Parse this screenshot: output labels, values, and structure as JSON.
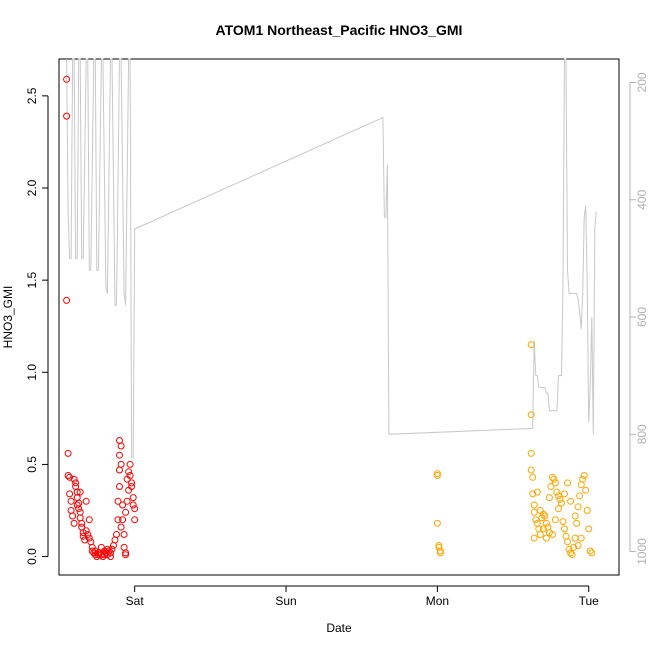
{
  "chart_data": {
    "type": "scatter",
    "title": "ATOM1 Northeast_Pacific HNO3_GMI",
    "xlabel": "Date",
    "ylabel": "HNO3_GMI",
    "x_ticks": [
      {
        "label": "Sat",
        "value": 1.0
      },
      {
        "label": "Sun",
        "value": 2.0
      },
      {
        "label": "Mon",
        "value": 3.0
      },
      {
        "label": "Tue",
        "value": 4.0
      }
    ],
    "xlim": [
      0.5,
      4.2
    ],
    "ylim": [
      -0.1,
      2.7
    ],
    "y_ticks": [
      "0.0",
      "0.5",
      "1.0",
      "1.5",
      "2.0",
      "2.5"
    ],
    "y2_ticks": [
      "200",
      "400",
      "600",
      "800",
      "1000"
    ],
    "y2lim": [
      1040,
      160
    ],
    "grid": false,
    "colors": {
      "series1": "#ff0000",
      "series2": "#ffa500",
      "pressure": "#c8c8c8",
      "axis": "#000000",
      "axis_right": "#b0b0b0"
    },
    "series": [
      {
        "color": "#ff0000",
        "points": [
          [
            0.55,
            2.59
          ],
          [
            0.55,
            2.39
          ],
          [
            0.55,
            1.39
          ],
          [
            0.56,
            0.56
          ],
          [
            0.56,
            0.44
          ],
          [
            0.57,
            0.43
          ],
          [
            0.57,
            0.34
          ],
          [
            0.58,
            0.3
          ],
          [
            0.58,
            0.25
          ],
          [
            0.59,
            0.22
          ],
          [
            0.6,
            0.18
          ],
          [
            0.6,
            0.42
          ],
          [
            0.61,
            0.4
          ],
          [
            0.61,
            0.38
          ],
          [
            0.62,
            0.35
          ],
          [
            0.62,
            0.32
          ],
          [
            0.63,
            0.29
          ],
          [
            0.63,
            0.26
          ],
          [
            0.64,
            0.24
          ],
          [
            0.64,
            0.21
          ],
          [
            0.65,
            0.18
          ],
          [
            0.65,
            0.16
          ],
          [
            0.66,
            0.13
          ],
          [
            0.66,
            0.11
          ],
          [
            0.67,
            0.09
          ],
          [
            0.68,
            0.14
          ],
          [
            0.69,
            0.12
          ],
          [
            0.7,
            0.1
          ],
          [
            0.71,
            0.08
          ],
          [
            0.72,
            0.05
          ],
          [
            0.72,
            0.03
          ],
          [
            0.73,
            0.02
          ],
          [
            0.74,
            0.01
          ],
          [
            0.75,
            0.0
          ],
          [
            0.76,
            0.01
          ],
          [
            0.77,
            0.02
          ],
          [
            0.78,
            0.01
          ],
          [
            0.79,
            0.0
          ],
          [
            0.8,
            0.01
          ],
          [
            0.81,
            0.02
          ],
          [
            0.82,
            0.01
          ],
          [
            0.83,
            0.03
          ],
          [
            0.84,
            0.02
          ],
          [
            0.85,
            0.04
          ],
          [
            0.86,
            0.06
          ],
          [
            0.87,
            0.09
          ],
          [
            0.88,
            0.12
          ],
          [
            0.89,
            0.2
          ],
          [
            0.89,
            0.3
          ],
          [
            0.9,
            0.38
          ],
          [
            0.9,
            0.47
          ],
          [
            0.9,
            0.55
          ],
          [
            0.9,
            0.63
          ],
          [
            0.91,
            0.6
          ],
          [
            0.91,
            0.5
          ],
          [
            0.92,
            0.28
          ],
          [
            0.92,
            0.2
          ],
          [
            0.93,
            0.12
          ],
          [
            0.93,
            0.05
          ],
          [
            0.94,
            0.02
          ],
          [
            0.94,
            0.01
          ],
          [
            0.95,
            0.3
          ],
          [
            0.95,
            0.42
          ],
          [
            0.96,
            0.46
          ],
          [
            0.97,
            0.5
          ],
          [
            0.97,
            0.44
          ],
          [
            0.98,
            0.4
          ],
          [
            0.98,
            0.38
          ],
          [
            0.99,
            0.32
          ],
          [
            0.99,
            0.28
          ],
          [
            1.0,
            0.26
          ],
          [
            1.0,
            0.2
          ],
          [
            0.96,
            0.36
          ],
          [
            0.94,
            0.24
          ],
          [
            0.91,
            0.16
          ],
          [
            0.7,
            0.2
          ],
          [
            0.68,
            0.3
          ],
          [
            0.64,
            0.35
          ],
          [
            0.62,
            0.28
          ],
          [
            0.84,
            0.0
          ],
          [
            0.82,
            0.04
          ],
          [
            0.8,
            0.03
          ],
          [
            0.78,
            0.05
          ],
          [
            0.76,
            0.02
          ],
          [
            0.74,
            0.03
          ]
        ]
      },
      {
        "color": "#ffa500",
        "points": [
          [
            3.0,
            0.45
          ],
          [
            3.0,
            0.44
          ],
          [
            3.0,
            0.18
          ],
          [
            3.01,
            0.06
          ],
          [
            3.01,
            0.05
          ],
          [
            3.02,
            0.03
          ],
          [
            3.02,
            0.02
          ],
          [
            3.62,
            1.15
          ],
          [
            3.62,
            0.77
          ],
          [
            3.62,
            0.56
          ],
          [
            3.62,
            0.47
          ],
          [
            3.63,
            0.43
          ],
          [
            3.63,
            0.34
          ],
          [
            3.64,
            0.28
          ],
          [
            3.64,
            0.24
          ],
          [
            3.65,
            0.2
          ],
          [
            3.66,
            0.18
          ],
          [
            3.67,
            0.15
          ],
          [
            3.68,
            0.12
          ],
          [
            3.69,
            0.21
          ],
          [
            3.7,
            0.23
          ],
          [
            3.71,
            0.22
          ],
          [
            3.72,
            0.18
          ],
          [
            3.73,
            0.16
          ],
          [
            3.74,
            0.13
          ],
          [
            3.75,
            0.38
          ],
          [
            3.76,
            0.43
          ],
          [
            3.77,
            0.42
          ],
          [
            3.78,
            0.4
          ],
          [
            3.79,
            0.35
          ],
          [
            3.8,
            0.33
          ],
          [
            3.81,
            0.31
          ],
          [
            3.82,
            0.29
          ],
          [
            3.83,
            0.19
          ],
          [
            3.84,
            0.15
          ],
          [
            3.85,
            0.11
          ],
          [
            3.86,
            0.08
          ],
          [
            3.87,
            0.04
          ],
          [
            3.88,
            0.02
          ],
          [
            3.89,
            0.01
          ],
          [
            3.9,
            0.05
          ],
          [
            3.91,
            0.1
          ],
          [
            3.92,
            0.18
          ],
          [
            3.93,
            0.27
          ],
          [
            3.94,
            0.33
          ],
          [
            3.95,
            0.39
          ],
          [
            3.96,
            0.42
          ],
          [
            3.97,
            0.44
          ],
          [
            3.98,
            0.36
          ],
          [
            3.99,
            0.25
          ],
          [
            4.0,
            0.15
          ],
          [
            4.01,
            0.03
          ],
          [
            4.02,
            0.02
          ],
          [
            3.95,
            0.1
          ],
          [
            3.93,
            0.06
          ],
          [
            3.91,
            0.22
          ],
          [
            3.88,
            0.3
          ],
          [
            3.86,
            0.4
          ],
          [
            3.84,
            0.34
          ],
          [
            3.8,
            0.26
          ],
          [
            3.78,
            0.2
          ],
          [
            3.76,
            0.12
          ],
          [
            3.74,
            0.32
          ],
          [
            3.72,
            0.1
          ],
          [
            3.7,
            0.15
          ],
          [
            3.68,
            0.25
          ],
          [
            3.66,
            0.35
          ],
          [
            3.64,
            0.1
          ]
        ]
      }
    ],
    "pressure_line": {
      "color": "#c8c8c8",
      "points": [
        [
          0.55,
          160
        ],
        [
          0.56,
          420
        ],
        [
          0.57,
          500
        ],
        [
          0.58,
          500
        ],
        [
          0.59,
          160
        ],
        [
          0.6,
          160
        ],
        [
          0.61,
          500
        ],
        [
          0.62,
          500
        ],
        [
          0.63,
          160
        ],
        [
          0.64,
          160
        ],
        [
          0.65,
          500
        ],
        [
          0.66,
          500
        ],
        [
          0.68,
          160
        ],
        [
          0.69,
          160
        ],
        [
          0.7,
          520
        ],
        [
          0.71,
          520
        ],
        [
          0.73,
          160
        ],
        [
          0.74,
          160
        ],
        [
          0.75,
          520
        ],
        [
          0.76,
          520
        ],
        [
          0.78,
          160
        ],
        [
          0.79,
          160
        ],
        [
          0.81,
          550
        ],
        [
          0.82,
          560
        ],
        [
          0.84,
          160
        ],
        [
          0.85,
          160
        ],
        [
          0.87,
          580
        ],
        [
          0.88,
          580
        ],
        [
          0.9,
          160
        ],
        [
          0.91,
          160
        ],
        [
          0.93,
          560
        ],
        [
          0.94,
          580
        ],
        [
          0.96,
          160
        ],
        [
          0.97,
          160
        ],
        [
          0.98,
          840
        ],
        [
          0.99,
          840
        ],
        [
          1.0,
          450
        ],
        [
          2.64,
          260
        ],
        [
          2.65,
          430
        ],
        [
          2.66,
          430
        ],
        [
          2.67,
          340
        ],
        [
          2.68,
          800
        ],
        [
          3.63,
          790
        ],
        [
          3.64,
          640
        ],
        [
          3.65,
          700
        ],
        [
          3.66,
          700
        ],
        [
          3.67,
          720
        ],
        [
          3.68,
          720
        ],
        [
          3.69,
          720
        ],
        [
          3.7,
          720
        ],
        [
          3.71,
          720
        ],
        [
          3.72,
          730
        ],
        [
          3.73,
          730
        ],
        [
          3.74,
          760
        ],
        [
          3.75,
          760
        ],
        [
          3.76,
          760
        ],
        [
          3.77,
          760
        ],
        [
          3.78,
          760
        ],
        [
          3.79,
          760
        ],
        [
          3.8,
          700
        ],
        [
          3.81,
          700
        ],
        [
          3.82,
          700
        ],
        [
          3.83,
          540
        ],
        [
          3.84,
          160
        ],
        [
          3.85,
          160
        ],
        [
          3.86,
          520
        ],
        [
          3.87,
          560
        ],
        [
          3.88,
          560
        ],
        [
          3.89,
          560
        ],
        [
          3.9,
          560
        ],
        [
          3.91,
          560
        ],
        [
          3.92,
          560
        ],
        [
          3.93,
          570
        ],
        [
          3.94,
          590
        ],
        [
          3.95,
          620
        ],
        [
          3.96,
          560
        ],
        [
          3.97,
          430
        ],
        [
          3.98,
          410
        ],
        [
          3.99,
          540
        ],
        [
          4.0,
          780
        ],
        [
          4.01,
          720
        ],
        [
          4.02,
          600
        ],
        [
          4.03,
          800
        ],
        [
          4.04,
          450
        ],
        [
          4.05,
          420
        ]
      ]
    }
  }
}
